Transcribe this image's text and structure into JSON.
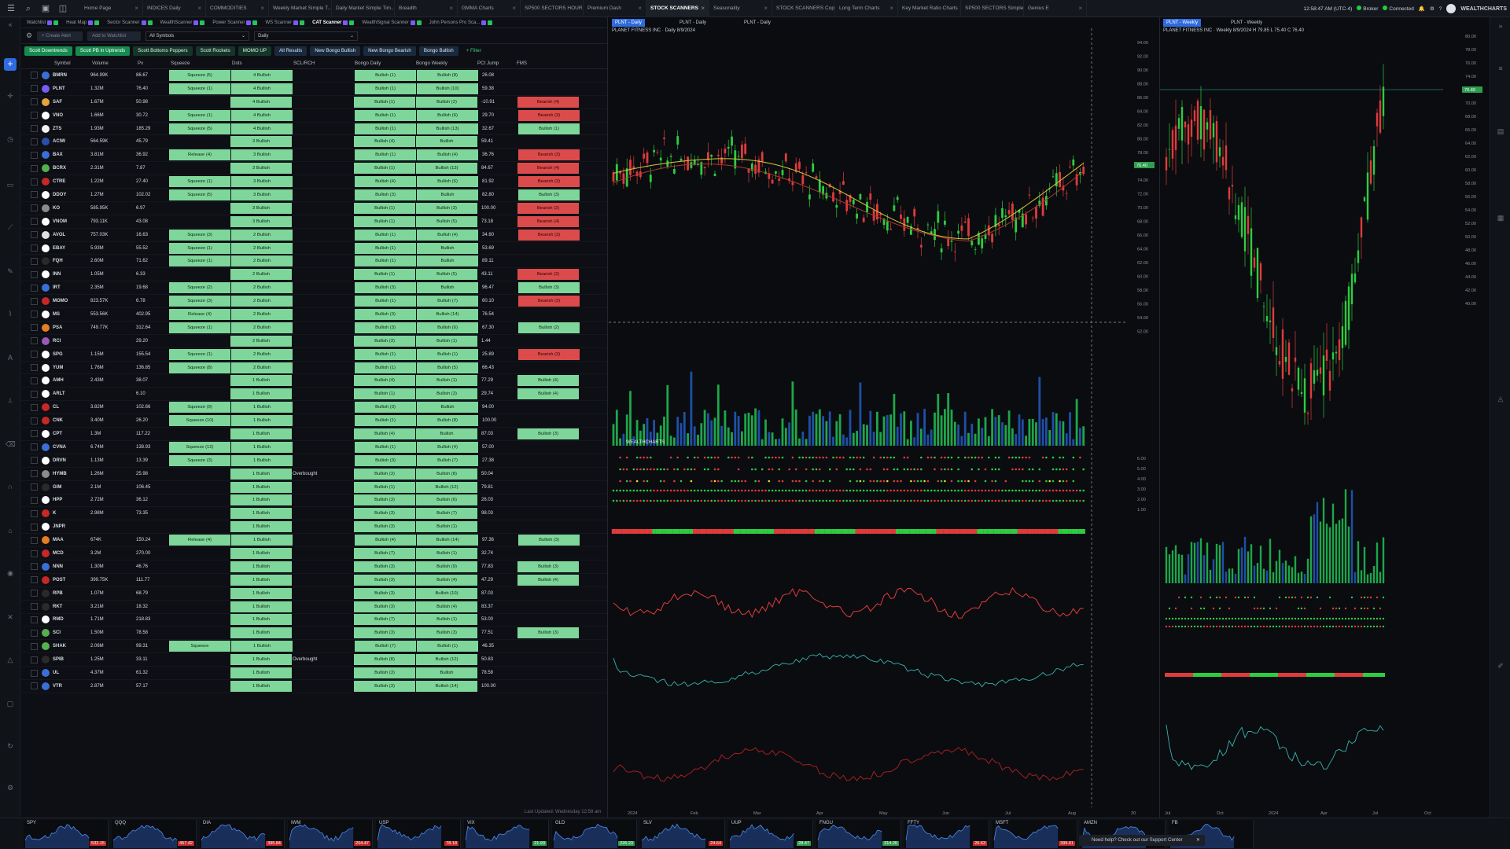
{
  "app": {
    "brand": "WEALTHCHARTS",
    "time": "12:58:47 AM (UTC-4)",
    "broker": "Broker",
    "connected": "Connected"
  },
  "tabs": [
    "Home Page",
    "INDICES Daily",
    "COMMODITIES",
    "Weekly Market Simple T...",
    "Daily Market Simple Tim...",
    "Breadth",
    "GMMA Charts",
    "SP500 SECTORS HOURLY",
    "Premium Dash",
    "STOCK SCANNERS",
    "Seasonality",
    "STOCK SCANNERS Copy",
    "Long Term Charts",
    "Key Market Ratio Charts",
    "SP500 SECTORS Simple...",
    "Genius E"
  ],
  "active_tab": "STOCK SCANNERS",
  "watchlist_tabs": [
    "Watchlist",
    "Heat Map",
    "Sector Scanner",
    "WealthScanner",
    "Power Scanner",
    "WS Scanner",
    "CAT Scanner",
    "WealthSignal Scanner",
    "John Persons Pro Sca..."
  ],
  "toolbar": {
    "create_alert": "+ Create Alert",
    "add_to_watchlist": "Add to Watchlist",
    "symbols_select": "All Symbols",
    "interval_select": "Daily"
  },
  "filters": [
    {
      "label": "Scott Downtrends",
      "style": "act"
    },
    {
      "label": "Scott PB in Uptrends",
      "style": "act"
    },
    {
      "label": "Scott Bottoms Poppers",
      "style": "normal"
    },
    {
      "label": "Scott Rockets",
      "style": "normal"
    },
    {
      "label": "MOMO UP",
      "style": "normal"
    },
    {
      "label": "All Results",
      "style": "alt"
    },
    {
      "label": "New Bongo Bullish",
      "style": "alt"
    },
    {
      "label": "New Bongo Bearish",
      "style": "alt"
    },
    {
      "label": "Bongo Bullish",
      "style": "alt"
    },
    {
      "label": "+ Filter",
      "style": "add"
    }
  ],
  "columns": [
    "Symbol",
    "Volume",
    "Px",
    "Squeeze",
    "Dots",
    "SCL/RCH",
    "Bongo Daily",
    "Bongo Weekly",
    "PCt Jump",
    "FMS"
  ],
  "rows": [
    {
      "sym": "BMRN",
      "vol": "964.99K",
      "px": "86.67",
      "sq": "Squeeze (5)",
      "dots": "4 Bullish",
      "scl": "",
      "bd": "Bullish (1)",
      "bw": "Bullish (8)",
      "j": "26.08",
      "fms": "",
      "c": "#3b6fd8"
    },
    {
      "sym": "PLNT",
      "vol": "1.32M",
      "px": "76.40",
      "sq": "Squeeze (1)",
      "dots": "4 Bullish",
      "scl": "",
      "bd": "Bullish (1)",
      "bw": "Bullish (10)",
      "j": "59.38",
      "fms": "",
      "c": "#7a5af8"
    },
    {
      "sym": "SAF",
      "vol": "1.67M",
      "px": "50.98",
      "sq": "",
      "dots": "4 Bullish",
      "scl": "",
      "bd": "Bullish (1)",
      "bw": "Bullish (2)",
      "j": "-10.91",
      "fms": "Bearish (4)",
      "c": "#e6a23c"
    },
    {
      "sym": "VNO",
      "vol": "1.66M",
      "px": "30.72",
      "sq": "Squeeze (1)",
      "dots": "4 Bullish",
      "scl": "",
      "bd": "Bullish (1)",
      "bw": "Bullish (6)",
      "j": "29.70",
      "fms": "Bearish (3)",
      "c": "#ffffff"
    },
    {
      "sym": "ZTS",
      "vol": "1.93M",
      "px": "185.29",
      "sq": "Squeeze (5)",
      "dots": "4 Bullish",
      "scl": "",
      "bd": "Bullish (1)",
      "bw": "Bullish (13)",
      "j": "32.67",
      "fms": "Bullish (1)",
      "c": "#f2f2f2"
    },
    {
      "sym": "ACIW",
      "vol": "564.59K",
      "px": "45.79",
      "sq": "",
      "dots": "3 Bullish",
      "scl": "",
      "bd": "Bullish (4)",
      "bw": "Bullish",
      "j": "59.41",
      "fms": "",
      "c": "#2850a8"
    },
    {
      "sym": "BAX",
      "vol": "3.81M",
      "px": "36.92",
      "sq": "Release (4)",
      "dots": "3 Bullish",
      "scl": "",
      "bd": "Bullish (1)",
      "bw": "Bullish (4)",
      "j": "36.76",
      "fms": "Bearish (3)",
      "c": "#3b6fd8"
    },
    {
      "sym": "BCRX",
      "vol": "2.31M",
      "px": "7.87",
      "sq": "",
      "dots": "3 Bullish",
      "scl": "",
      "bd": "Bullish (1)",
      "bw": "Bullish (13)",
      "j": "84.67",
      "fms": "Bearish (4)",
      "c": "#55b04f"
    },
    {
      "sym": "CTRE",
      "vol": "1.22M",
      "px": "27.40",
      "sq": "Squeeze (1)",
      "dots": "3 Bullish",
      "scl": "",
      "bd": "Bullish (4)",
      "bw": "Bullish (6)",
      "j": "81.92",
      "fms": "Bearish (3)",
      "c": "#c62828"
    },
    {
      "sym": "DDOY",
      "vol": "1.27M",
      "px": "102.02",
      "sq": "Squeeze (5)",
      "dots": "3 Bullish",
      "scl": "",
      "bd": "Bullish (3)",
      "bw": "Bullish",
      "j": "82.80",
      "fms": "Bullish (3)",
      "c": "#ffffff"
    },
    {
      "sym": "KO",
      "vol": "585.95K",
      "px": "6.97",
      "sq": "",
      "dots": "3 Bullish",
      "scl": "",
      "bd": "Bullish (1)",
      "bw": "Bullish (3)",
      "j": "100.00",
      "fms": "Bearish (2)",
      "c": "#8b8b8b"
    },
    {
      "sym": "VNOM",
      "vol": "793.11K",
      "px": "43.08",
      "sq": "",
      "dots": "3 Bullish",
      "scl": "",
      "bd": "Bullish (1)",
      "bw": "Bullish (5)",
      "j": "73.18",
      "fms": "Bearish (4)",
      "c": "#ffffff"
    },
    {
      "sym": "AVOL",
      "vol": "757.03K",
      "px": "16.63",
      "sq": "Squeeze (3)",
      "dots": "2 Bullish",
      "scl": "",
      "bd": "Bullish (1)",
      "bw": "Bullish (4)",
      "j": "34.60",
      "fms": "Bearish (3)",
      "c": "#e0e0e0"
    },
    {
      "sym": "EBAY",
      "vol": "5.93M",
      "px": "55.52",
      "sq": "Squeeze (1)",
      "dots": "2 Bullish",
      "scl": "",
      "bd": "Bullish (1)",
      "bw": "Bullish",
      "j": "53.69",
      "fms": "",
      "c": "#ffffff"
    },
    {
      "sym": "FQH",
      "vol": "2.60M",
      "px": "71.62",
      "sq": "Squeeze (1)",
      "dots": "2 Bullish",
      "scl": "",
      "bd": "Bullish (1)",
      "bw": "Bullish",
      "j": "89.11",
      "fms": "",
      "c": "#2a2a2a"
    },
    {
      "sym": "INN",
      "vol": "1.05M",
      "px": "6.33",
      "sq": "",
      "dots": "2 Bullish",
      "scl": "",
      "bd": "Bullish (1)",
      "bw": "Bullish (5)",
      "j": "43.11",
      "fms": "Bearish (2)",
      "c": "#ffffff"
    },
    {
      "sym": "IRT",
      "vol": "2.35M",
      "px": "19.68",
      "sq": "Squeeze (2)",
      "dots": "2 Bullish",
      "scl": "",
      "bd": "Bullish (3)",
      "bw": "Bullish",
      "j": "96.47",
      "fms": "Bullish (3)",
      "c": "#3b6fd8"
    },
    {
      "sym": "MOMO",
      "vol": "823.57K",
      "px": "6.78",
      "sq": "Squeeze (3)",
      "dots": "2 Bullish",
      "scl": "",
      "bd": "Bullish (1)",
      "bw": "Bullish (7)",
      "j": "60.10",
      "fms": "Bearish (3)",
      "c": "#c62828"
    },
    {
      "sym": "MS",
      "vol": "553.56K",
      "px": "402.95",
      "sq": "Release (4)",
      "dots": "2 Bullish",
      "scl": "",
      "bd": "Bullish (3)",
      "bw": "Bullish (14)",
      "j": "76.54",
      "fms": "",
      "c": "#ffffff"
    },
    {
      "sym": "PSA",
      "vol": "749.77K",
      "px": "312.64",
      "sq": "Squeeze (1)",
      "dots": "2 Bullish",
      "scl": "",
      "bd": "Bullish (3)",
      "bw": "Bullish (6)",
      "j": "67.30",
      "fms": "Bullish (2)",
      "c": "#e67e22"
    },
    {
      "sym": "RCI",
      "vol": "",
      "px": "29.20",
      "sq": "",
      "dots": "2 Bullish",
      "scl": "",
      "bd": "Bullish (3)",
      "bw": "Bullish (1)",
      "j": "1.44",
      "fms": "",
      "c": "#9b59b6"
    },
    {
      "sym": "SPG",
      "vol": "1.15M",
      "px": "155.54",
      "sq": "Squeeze (1)",
      "dots": "2 Bullish",
      "scl": "",
      "bd": "Bullish (1)",
      "bw": "Bullish (1)",
      "j": "25.89",
      "fms": "Bearish (3)",
      "c": "#ffffff"
    },
    {
      "sym": "YUM",
      "vol": "1.76M",
      "px": "136.85",
      "sq": "Squeeze (8)",
      "dots": "2 Bullish",
      "scl": "",
      "bd": "Bullish (1)",
      "bw": "Bullish (5)",
      "j": "66.43",
      "fms": "",
      "c": "#ffffff"
    },
    {
      "sym": "AMH",
      "vol": "2.43M",
      "px": "38.07",
      "sq": "",
      "dots": "1 Bullish",
      "scl": "",
      "bd": "Bullish (4)",
      "bw": "Bullish (1)",
      "j": "77.29",
      "fms": "Bullish (4)",
      "c": "#ffffff"
    },
    {
      "sym": "ARLT",
      "vol": "",
      "px": "6.10",
      "sq": "",
      "dots": "1 Bullish",
      "scl": "",
      "bd": "Bullish (1)",
      "bw": "Bullish (3)",
      "j": "29.74",
      "fms": "Bullish (4)",
      "c": "#ffffff"
    },
    {
      "sym": "CL",
      "vol": "3.82M",
      "px": "102.66",
      "sq": "Squeeze (9)",
      "dots": "1 Bullish",
      "scl": "",
      "bd": "Bullish (3)",
      "bw": "Bullish",
      "j": "94.00",
      "fms": "",
      "c": "#c62828"
    },
    {
      "sym": "CNK",
      "vol": "3.40M",
      "px": "26.20",
      "sq": "Squeeze (10)",
      "dots": "1 Bullish",
      "scl": "",
      "bd": "Bullish (1)",
      "bw": "Bullish (8)",
      "j": "100.00",
      "fms": "",
      "c": "#c62828"
    },
    {
      "sym": "CPT",
      "vol": "1.3M",
      "px": "117.22",
      "sq": "",
      "dots": "1 Bullish",
      "scl": "",
      "bd": "Bullish (4)",
      "bw": "Bullish",
      "j": "87.03",
      "fms": "Bullish (3)",
      "c": "#ffffff"
    },
    {
      "sym": "CVNA",
      "vol": "6.74M",
      "px": "138.93",
      "sq": "Squeeze (12)",
      "dots": "1 Bullish",
      "scl": "",
      "bd": "Bullish (1)",
      "bw": "Bullish (4)",
      "j": "57.00",
      "fms": "",
      "c": "#3b6fd8"
    },
    {
      "sym": "DRVN",
      "vol": "1.13M",
      "px": "13.39",
      "sq": "Squeeze (3)",
      "dots": "1 Bullish",
      "scl": "",
      "bd": "Bullish (3)",
      "bw": "Bullish (7)",
      "j": "27.38",
      "fms": "",
      "c": "#ffffff"
    },
    {
      "sym": "HYMB",
      "vol": "1.26M",
      "px": "25.98",
      "sq": "",
      "dots": "1 Bullish",
      "scl": "Overbought",
      "bd": "Bullish (3)",
      "bw": "Bullish (8)",
      "j": "50.04",
      "fms": "",
      "c": "#8b8b8b"
    },
    {
      "sym": "GIM",
      "vol": "2.1M",
      "px": "106.45",
      "sq": "",
      "dots": "1 Bullish",
      "scl": "",
      "bd": "Bullish (1)",
      "bw": "Bullish (12)",
      "j": "79.81",
      "fms": "",
      "c": "#2a2a2a"
    },
    {
      "sym": "HPP",
      "vol": "2.72M",
      "px": "36.12",
      "sq": "",
      "dots": "1 Bullish",
      "scl": "",
      "bd": "Bullish (3)",
      "bw": "Bullish (6)",
      "j": "26.03",
      "fms": "",
      "c": "#ffffff"
    },
    {
      "sym": "K",
      "vol": "2.98M",
      "px": "73.35",
      "sq": "",
      "dots": "1 Bullish",
      "scl": "",
      "bd": "Bullish (3)",
      "bw": "Bullish (7)",
      "j": "98.03",
      "fms": "",
      "c": "#c62828"
    },
    {
      "sym": "JNPR",
      "vol": "",
      "px": "",
      "sq": "",
      "dots": "1 Bullish",
      "scl": "",
      "bd": "Bullish (3)",
      "bw": "Bullish (1)",
      "j": "",
      "fms": "",
      "c": "#ffffff"
    },
    {
      "sym": "MAA",
      "vol": "674K",
      "px": "150.24",
      "sq": "Release (4)",
      "dots": "1 Bullish",
      "scl": "",
      "bd": "Bullish (4)",
      "bw": "Bullish (14)",
      "j": "97.36",
      "fms": "Bullish (3)",
      "c": "#e67e22"
    },
    {
      "sym": "MCD",
      "vol": "3.2M",
      "px": "270.00",
      "sq": "",
      "dots": "1 Bullish",
      "scl": "",
      "bd": "Bullish (7)",
      "bw": "Bullish (1)",
      "j": "32.74",
      "fms": "",
      "c": "#c62828"
    },
    {
      "sym": "NNN",
      "vol": "1.30M",
      "px": "46.76",
      "sq": "",
      "dots": "1 Bullish",
      "scl": "",
      "bd": "Bullish (3)",
      "bw": "Bullish (9)",
      "j": "77.83",
      "fms": "Bullish (3)",
      "c": "#3b6fd8"
    },
    {
      "sym": "POST",
      "vol": "399.75K",
      "px": "111.77",
      "sq": "",
      "dots": "1 Bullish",
      "scl": "",
      "bd": "Bullish (3)",
      "bw": "Bullish (4)",
      "j": "47.29",
      "fms": "Bullish (4)",
      "c": "#c62828"
    },
    {
      "sym": "RPB",
      "vol": "1.07M",
      "px": "68.79",
      "sq": "",
      "dots": "1 Bullish",
      "scl": "",
      "bd": "Bullish (3)",
      "bw": "Bullish (10)",
      "j": "87.03",
      "fms": "",
      "c": "#2a2a2a"
    },
    {
      "sym": "RKT",
      "vol": "3.21M",
      "px": "18.32",
      "sq": "",
      "dots": "1 Bullish",
      "scl": "",
      "bd": "Bullish (3)",
      "bw": "Bullish (4)",
      "j": "83.37",
      "fms": "",
      "c": "#2a2a2a"
    },
    {
      "sym": "RMD",
      "vol": "1.71M",
      "px": "218.83",
      "sq": "",
      "dots": "1 Bullish",
      "scl": "",
      "bd": "Bullish (7)",
      "bw": "Bullish (1)",
      "j": "53.00",
      "fms": "",
      "c": "#ffffff"
    },
    {
      "sym": "SCI",
      "vol": "1.50M",
      "px": "78.58",
      "sq": "",
      "dots": "1 Bullish",
      "scl": "",
      "bd": "Bullish (3)",
      "bw": "Bullish (3)",
      "j": "77.51",
      "fms": "Bullish (3)",
      "c": "#55b04f"
    },
    {
      "sym": "SHAK",
      "vol": "2.06M",
      "px": "99.31",
      "sq": "Squeeze",
      "dots": "1 Bullish",
      "scl": "",
      "bd": "Bullish (7)",
      "bw": "Bullish (1)",
      "j": "46.35",
      "fms": "",
      "c": "#55b04f"
    },
    {
      "sym": "SPIB",
      "vol": "1.25M",
      "px": "33.11",
      "sq": "",
      "dots": "1 Bullish",
      "scl": "Overbought",
      "bd": "Bullish (8)",
      "bw": "Bullish (12)",
      "j": "50.83",
      "fms": "",
      "c": "#2a2a2a"
    },
    {
      "sym": "UL",
      "vol": "4.37M",
      "px": "61.32",
      "sq": "",
      "dots": "1 Bullish",
      "scl": "",
      "bd": "Bullish (3)",
      "bw": "Bullish",
      "j": "78.58",
      "fms": "",
      "c": "#3b6fd8"
    },
    {
      "sym": "VTR",
      "vol": "2.87M",
      "px": "57.17",
      "sq": "",
      "dots": "1 Bullish",
      "scl": "",
      "bd": "Bullish (3)",
      "bw": "Bullish (14)",
      "j": "100.00",
      "fms": "",
      "c": "#3b6fd8"
    }
  ],
  "last_updated": "Last Updated: Wednesday 12:58 am",
  "chart_daily": {
    "tabs": [
      "PLNT - Daily",
      "PLNT - Daily",
      "PLNT - Daily"
    ],
    "title": "PLANET FITNESS INC · Daily 8/9/2024",
    "x_labels": [
      "2024",
      "Feb",
      "Mar",
      "Apr",
      "May",
      "Jun",
      "Jul",
      "Aug",
      "20"
    ],
    "y_labels": [
      "94.00",
      "92.00",
      "90.00",
      "88.00",
      "86.00",
      "84.00",
      "82.00",
      "80.00",
      "78.00",
      "76.00",
      "74.00",
      "72.00",
      "70.00",
      "68.00",
      "66.00",
      "64.00",
      "62.00",
      "60.00",
      "58.00",
      "56.00",
      "54.00",
      "52.00"
    ],
    "osc_labels": [
      "6.00",
      "5.00",
      "4.00",
      "3.00",
      "2.00",
      "1.00"
    ],
    "price_tag": "76.40",
    "watermark": "WEALTHCHARTS"
  },
  "chart_weekly": {
    "tabs": [
      "PLNT - Weekly",
      "PLNT - Weekly"
    ],
    "title": "PLANET FITNESS INC · Weekly 8/9/2024 H 79.85 L 75.40 C 76.40",
    "x_labels": [
      "Jul",
      "Oct",
      "2024",
      "Apr",
      "Jul",
      "Oct"
    ],
    "y_labels": [
      "80.00",
      "78.00",
      "76.00",
      "74.00",
      "72.00",
      "70.00",
      "68.00",
      "66.00",
      "64.00",
      "62.00",
      "60.00",
      "58.00",
      "56.00",
      "54.00",
      "52.00",
      "50.00",
      "48.00",
      "46.00",
      "44.00",
      "42.00",
      "40.00"
    ],
    "price_tag": "76.40"
  },
  "bottom_tickers": [
    {
      "sym": "SPY",
      "val": "532.15",
      "c": "#c62828"
    },
    {
      "sym": "QQQ",
      "val": "457.42",
      "c": "#c62828"
    },
    {
      "sym": "DIA",
      "val": "395.84",
      "c": "#c62828"
    },
    {
      "sym": "IWM",
      "val": "204.47",
      "c": "#c62828"
    },
    {
      "sym": "USP",
      "val": "78.18",
      "c": "#c62828"
    },
    {
      "sym": "VIX",
      "val": "21.93",
      "c": "#2e9e4f"
    },
    {
      "sym": "GLD",
      "val": "226.23",
      "c": "#2e9e4f"
    },
    {
      "sym": "SLV",
      "val": "24.64",
      "c": "#c62828"
    },
    {
      "sym": "UUP",
      "val": "28.47",
      "c": "#2e9e4f"
    },
    {
      "sym": "FNGU",
      "val": "314.26",
      "c": "#2e9e4f"
    },
    {
      "sym": "FFTY",
      "val": "26.63",
      "c": "#c62828"
    },
    {
      "sym": "MSFT",
      "val": "399.61",
      "c": "#c62828"
    },
    {
      "sym": "AMZN",
      "val": "166.94",
      "c": "#c62828"
    },
    {
      "sym": "FB",
      "val": "",
      "c": "#c62828"
    }
  ],
  "help_text": "Need help? Check out our Support Center"
}
